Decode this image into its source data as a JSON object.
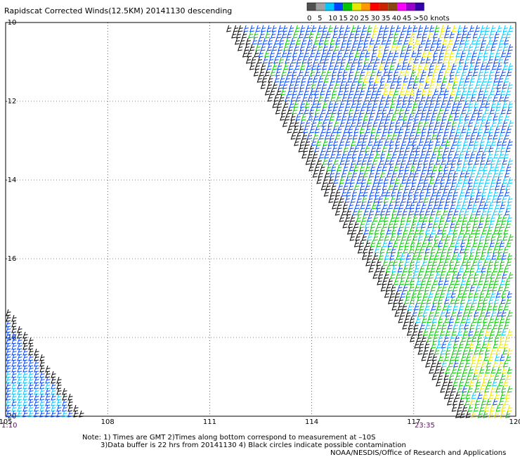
{
  "title": "Rapidscat Corrected Winds(12.5KM) 20141130 descending",
  "colorbar": {
    "labels": [
      "0",
      "5",
      "10",
      "15",
      "20",
      "25",
      "30",
      "35",
      "40",
      "45",
      ">50 knots"
    ],
    "colors": [
      "#505050",
      "#a0a0a0",
      "#00c8ff",
      "#0044ff",
      "#00c800",
      "#e8e800",
      "#ff9900",
      "#ff0000",
      "#cc2200",
      "#8b4513",
      "#ff00ff",
      "#9900cc",
      "#3300aa"
    ]
  },
  "map": {
    "lon_range": [
      105,
      120
    ],
    "lat_range": [
      -20,
      -10
    ],
    "lon_ticks": [
      "105",
      "108",
      "111",
      "114",
      "117",
      "120"
    ],
    "lat_ticks": [
      "-10",
      "-12",
      "-14",
      "-16",
      "-18",
      "-20"
    ],
    "grid": true
  },
  "times": {
    "left": "1:10",
    "right": "23:35"
  },
  "notes": {
    "line1": "Note: 1) Times are GMT 2)Times along bottom correspond to measurement at –10S",
    "line2": "3)Data buffer is 22 hrs from 20141130 4) Black circles indicate possible contamination",
    "credit": "NOAA/NESDIS/Office of Research and Applications"
  }
}
